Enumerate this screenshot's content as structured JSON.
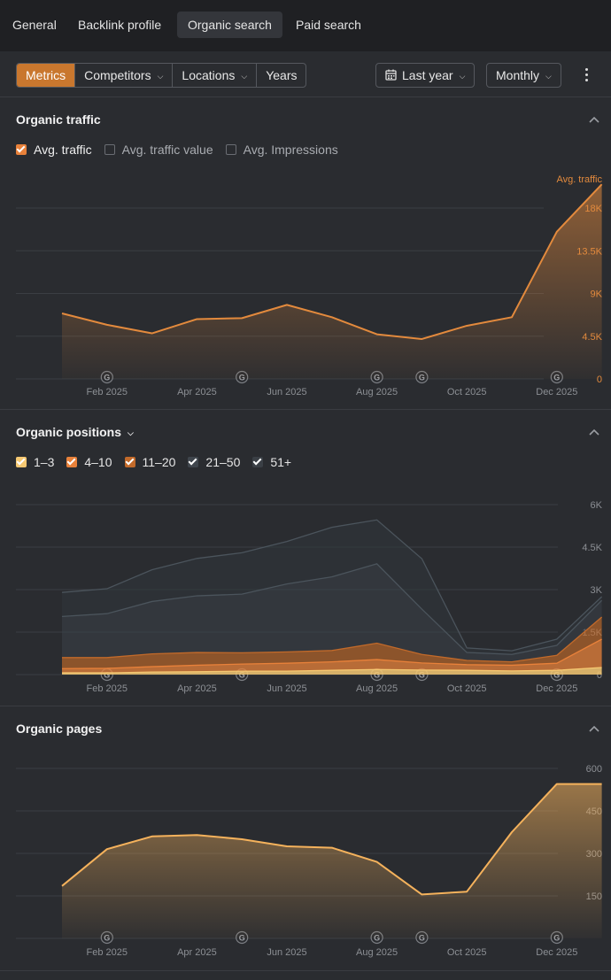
{
  "nav": {
    "tabs": [
      {
        "label": "General",
        "active": false
      },
      {
        "label": "Backlink profile",
        "active": false
      },
      {
        "label": "Organic search",
        "active": true
      },
      {
        "label": "Paid search",
        "active": false
      }
    ]
  },
  "toolbar": {
    "segments": [
      "Metrics",
      "Competitors",
      "Locations",
      "Years"
    ],
    "period": "Last year",
    "granularity": "Monthly"
  },
  "colors": {
    "accent": "#c9772e",
    "traffic_line": "#e38a3d",
    "pages_line": "#f5b25c",
    "pos_1_3": "#f5c872",
    "pos_4_10": "#e8813a",
    "pos_11_20": "#c26a2a",
    "pos_21_50": "#3a4148",
    "pos_51_plus": "#2f363c"
  },
  "traffic": {
    "title": "Organic traffic",
    "options": [
      {
        "label": "Avg. traffic",
        "checked": true
      },
      {
        "label": "Avg. traffic value",
        "checked": false
      },
      {
        "label": "Avg. Impressions",
        "checked": false
      }
    ]
  },
  "positions": {
    "title": "Organic positions",
    "options": [
      {
        "label": "1–3",
        "checked": true
      },
      {
        "label": "4–10",
        "checked": true
      },
      {
        "label": "11–20",
        "checked": true
      },
      {
        "label": "21–50",
        "checked": true
      },
      {
        "label": "51+",
        "checked": true
      }
    ]
  },
  "pages": {
    "title": "Organic pages"
  },
  "chart_data": [
    {
      "type": "area",
      "title": "Organic traffic",
      "series_label": "Avg. traffic",
      "x": [
        "Jan 2025",
        "Feb 2025",
        "Mar 2025",
        "Apr 2025",
        "May 2025",
        "Jun 2025",
        "Jul 2025",
        "Aug 2025",
        "Sep 2025",
        "Oct 2025",
        "Nov 2025",
        "Dec 2025",
        "Jan 2026"
      ],
      "xtick_labels": [
        "Feb 2025",
        "Apr 2025",
        "Jun 2025",
        "Aug 2025",
        "Oct 2025",
        "Dec 2025"
      ],
      "values": [
        6900,
        5700,
        4800,
        6300,
        6400,
        7800,
        6500,
        4700,
        4200,
        5600,
        6500,
        15500,
        20500
      ],
      "ylim": [
        0,
        18000
      ],
      "yticks": [
        0,
        4500,
        9000,
        13500,
        18000
      ],
      "ytick_labels": [
        "0",
        "4.5K",
        "9K",
        "13.5K",
        "18K"
      ],
      "ylabel": "Avg. traffic",
      "google_updates": [
        "Feb 2025",
        "May 2025",
        "Aug 2025",
        "Sep 2025",
        "Dec 2025"
      ]
    },
    {
      "type": "area",
      "stacked": true,
      "title": "Organic positions",
      "x": [
        "Jan 2025",
        "Feb 2025",
        "Mar 2025",
        "Apr 2025",
        "May 2025",
        "Jun 2025",
        "Jul 2025",
        "Aug 2025",
        "Sep 2025",
        "Oct 2025",
        "Nov 2025",
        "Dec 2025",
        "Jan 2026"
      ],
      "xtick_labels": [
        "Feb 2025",
        "Apr 2025",
        "Jun 2025",
        "Aug 2025",
        "Oct 2025",
        "Dec 2025"
      ],
      "series": [
        {
          "name": "1–3",
          "values": [
            60,
            60,
            90,
            100,
            120,
            120,
            150,
            180,
            160,
            150,
            130,
            150,
            250
          ]
        },
        {
          "name": "4–10",
          "values": [
            150,
            160,
            190,
            230,
            250,
            280,
            300,
            350,
            250,
            200,
            200,
            250,
            1000
          ]
        },
        {
          "name": "11–20",
          "values": [
            390,
            380,
            450,
            450,
            400,
            400,
            400,
            580,
            300,
            150,
            120,
            280,
            780
          ]
        },
        {
          "name": "21–50",
          "values": [
            1450,
            1550,
            1850,
            2000,
            2070,
            2400,
            2600,
            2800,
            1600,
            280,
            260,
            350,
            590
          ]
        },
        {
          "name": "51+",
          "values": [
            850,
            880,
            1120,
            1320,
            1460,
            1500,
            1750,
            1550,
            1780,
            160,
            130,
            220,
            130
          ]
        }
      ],
      "ylim": [
        0,
        6000
      ],
      "yticks": [
        0,
        1500,
        3000,
        4500,
        6000
      ],
      "ytick_labels": [
        "0",
        "1.5K",
        "3K",
        "4.5K",
        "6K"
      ],
      "google_updates": [
        "Feb 2025",
        "May 2025",
        "Aug 2025",
        "Sep 2025",
        "Dec 2025"
      ]
    },
    {
      "type": "area",
      "title": "Organic pages",
      "x": [
        "Jan 2025",
        "Feb 2025",
        "Mar 2025",
        "Apr 2025",
        "May 2025",
        "Jun 2025",
        "Jul 2025",
        "Aug 2025",
        "Sep 2025",
        "Oct 2025",
        "Nov 2025",
        "Dec 2025",
        "Jan 2026"
      ],
      "xtick_labels": [
        "Feb 2025",
        "Apr 2025",
        "Jun 2025",
        "Aug 2025",
        "Oct 2025",
        "Dec 2025"
      ],
      "values": [
        185,
        315,
        360,
        365,
        350,
        325,
        320,
        270,
        155,
        165,
        375,
        545,
        545
      ],
      "ylim": [
        0,
        600
      ],
      "yticks": [
        0,
        150,
        300,
        450,
        600
      ],
      "ytick_labels": [
        "",
        "150",
        "300",
        "450",
        "600"
      ],
      "google_updates": [
        "Feb 2025",
        "May 2025",
        "Aug 2025",
        "Sep 2025",
        "Dec 2025"
      ]
    }
  ]
}
